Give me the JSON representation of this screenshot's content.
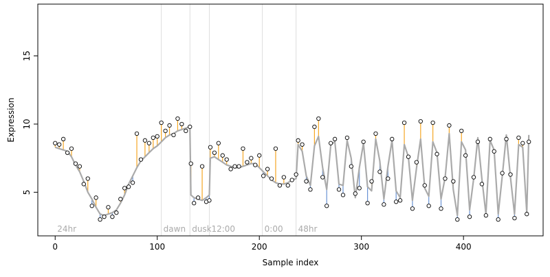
{
  "chart_data": {
    "type": "line",
    "title": "",
    "xlabel": "Sample index",
    "ylabel": "Expression",
    "xlim": [
      -17,
      478
    ],
    "ylim": [
      1.8,
      18.8
    ],
    "x_ticks": [
      0,
      100,
      200,
      300,
      400
    ],
    "y_ticks": [
      5,
      10,
      15
    ],
    "colors": {
      "fit_line": "#aaaaaa",
      "residual_above": "#f5a623",
      "residual_below": "#6a93d4",
      "point_fill": "#ffffff",
      "point_stroke": "#000000",
      "section_line": "#dddddd",
      "section_label": "#aaaaaa"
    },
    "sections": [
      {
        "x": 0,
        "label": "24hr"
      },
      {
        "x": 104,
        "label": "dawn"
      },
      {
        "x": 132,
        "label": "dusk"
      },
      {
        "x": 151,
        "label": "12:00"
      },
      {
        "x": 203,
        "label": "0:00"
      },
      {
        "x": 236,
        "label": "48hr"
      }
    ],
    "fit_line": {
      "name": "",
      "x": [
        0,
        4,
        8,
        12,
        16,
        20,
        24,
        28,
        32,
        36,
        40,
        44,
        48,
        52,
        56,
        60,
        64,
        68,
        72,
        76,
        80,
        84,
        88,
        92,
        96,
        100,
        104,
        108,
        112,
        116,
        120,
        124,
        128,
        132,
        133,
        136,
        140,
        144,
        148,
        151,
        152,
        156,
        160,
        164,
        168,
        172,
        176,
        180,
        184,
        188,
        192,
        196,
        200,
        204,
        208,
        212,
        216,
        220,
        224,
        228,
        232,
        236,
        238,
        242,
        246,
        250,
        254,
        258,
        262,
        266,
        270,
        274,
        278,
        282,
        286,
        290,
        294,
        298,
        302,
        306,
        310,
        314,
        318,
        322,
        326,
        330,
        334,
        338,
        342,
        346,
        350,
        354,
        358,
        362,
        366,
        370,
        374,
        378,
        382,
        386,
        390,
        394,
        398,
        402,
        406,
        410,
        414,
        418,
        422,
        426,
        430,
        434,
        438,
        442,
        446,
        450,
        454,
        458,
        462,
        464
      ],
      "y": [
        8.3,
        8.2,
        8.1,
        8.0,
        7.6,
        7.0,
        6.5,
        5.8,
        5.0,
        4.5,
        3.9,
        3.4,
        3.3,
        3.4,
        3.5,
        3.7,
        4.2,
        4.8,
        5.6,
        6.2,
        6.8,
        7.3,
        7.6,
        7.9,
        8.2,
        8.4,
        8.7,
        9.0,
        9.2,
        9.3,
        9.5,
        9.6,
        9.7,
        9.8,
        4.8,
        4.6,
        4.5,
        4.4,
        4.6,
        4.8,
        7.5,
        7.6,
        7.4,
        7.2,
        7.0,
        6.9,
        6.8,
        6.8,
        6.9,
        7.0,
        7.1,
        7.1,
        6.8,
        6.5,
        6.2,
        5.9,
        5.7,
        5.6,
        5.6,
        5.7,
        5.9,
        6.0,
        8.5,
        8.0,
        6.2,
        5.5,
        8.4,
        9.1,
        6.8,
        5.2,
        8.5,
        8.7,
        5.6,
        5.5,
        8.8,
        7.5,
        4.6,
        6.8,
        8.6,
        5.4,
        5.1,
        8.9,
        7.3,
        4.5,
        6.9,
        8.8,
        5.1,
        4.6,
        8.5,
        7.6,
        4.4,
        6.8,
        8.9,
        5.3,
        4.7,
        8.7,
        7.9,
        4.5,
        6.1,
        9.3,
        5.2,
        3.3,
        8.7,
        8.1,
        3.7,
        6.0,
        9.0,
        6.0,
        3.4,
        8.8,
        8.1,
        3.4,
        6.2,
        9.2,
        6.1,
        3.4,
        8.5,
        8.3,
        3.5,
        9.2
      ]
    },
    "points": {
      "name": "",
      "x": [
        0,
        4,
        8,
        12,
        16,
        20,
        24,
        28,
        32,
        36,
        40,
        44,
        48,
        52,
        56,
        60,
        64,
        68,
        72,
        76,
        80,
        84,
        88,
        92,
        96,
        100,
        104,
        108,
        112,
        116,
        120,
        124,
        128,
        132,
        133,
        136,
        140,
        144,
        148,
        151,
        152,
        156,
        160,
        164,
        168,
        172,
        176,
        180,
        184,
        188,
        192,
        196,
        200,
        204,
        208,
        212,
        216,
        220,
        224,
        228,
        232,
        236,
        238,
        242,
        246,
        250,
        254,
        258,
        262,
        266,
        270,
        274,
        278,
        282,
        286,
        290,
        294,
        298,
        302,
        306,
        310,
        314,
        318,
        322,
        326,
        330,
        334,
        338,
        342,
        346,
        350,
        354,
        358,
        362,
        366,
        370,
        374,
        378,
        382,
        386,
        390,
        394,
        398,
        402,
        406,
        410,
        414,
        418,
        422,
        426,
        430,
        434,
        438,
        442,
        446,
        450,
        454,
        458,
        462,
        464
      ],
      "y": [
        8.6,
        8.5,
        8.9,
        7.9,
        8.2,
        7.1,
        6.9,
        5.6,
        6.0,
        4.0,
        4.6,
        3.0,
        3.2,
        3.9,
        3.2,
        3.5,
        4.5,
        5.3,
        5.4,
        5.7,
        9.3,
        7.4,
        8.8,
        8.6,
        9.0,
        9.1,
        10.1,
        9.5,
        9.9,
        9.2,
        10.4,
        10.0,
        9.5,
        9.8,
        7.1,
        4.2,
        4.6,
        6.9,
        4.3,
        4.4,
        8.3,
        7.9,
        8.6,
        7.7,
        7.4,
        6.7,
        6.9,
        6.9,
        8.2,
        7.2,
        7.5,
        7.0,
        7.7,
        6.2,
        6.7,
        6.0,
        8.2,
        5.5,
        6.1,
        5.5,
        5.9,
        6.3,
        8.8,
        8.5,
        5.8,
        5.2,
        9.8,
        10.4,
        6.1,
        4.0,
        8.6,
        8.9,
        5.2,
        4.8,
        9.0,
        6.9,
        4.9,
        5.3,
        8.7,
        4.2,
        5.8,
        9.3,
        6.5,
        4.1,
        6.0,
        8.9,
        4.3,
        4.4,
        10.1,
        7.6,
        3.8,
        7.2,
        10.2,
        5.5,
        4.0,
        10.1,
        7.8,
        3.8,
        6.0,
        9.9,
        5.8,
        3.0,
        9.5,
        7.7,
        3.2,
        6.1,
        8.7,
        5.6,
        3.3,
        8.9,
        8.0,
        3.0,
        6.4,
        8.9,
        6.3,
        3.1,
        9.0,
        8.6,
        3.4,
        8.7
      ]
    }
  }
}
